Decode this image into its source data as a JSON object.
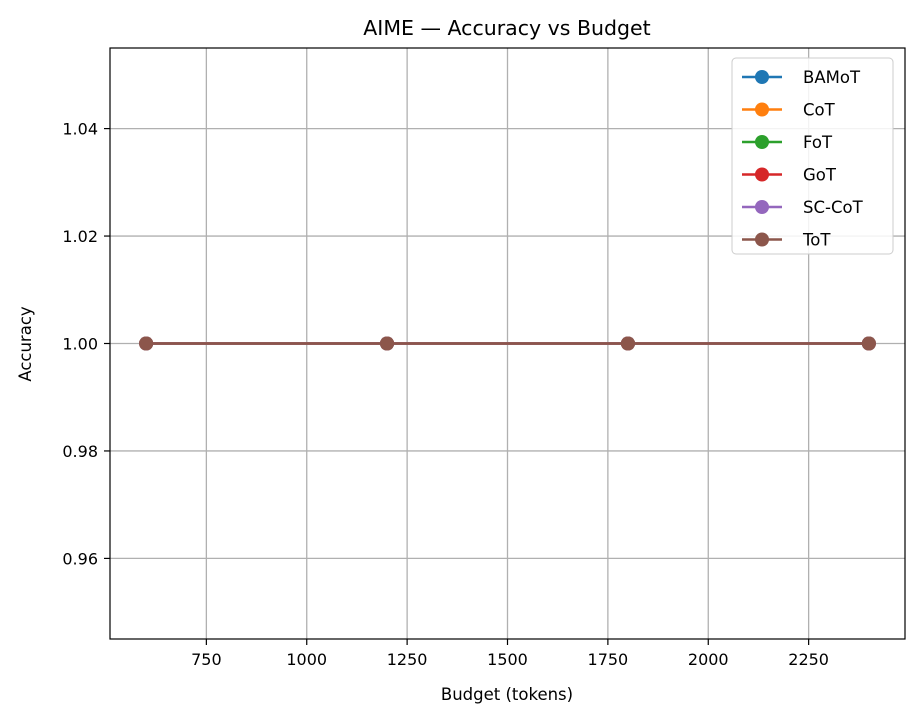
{
  "chart_data": {
    "type": "line",
    "title": "AIME — Accuracy vs Budget",
    "xlabel": "Budget (tokens)",
    "ylabel": "Accuracy",
    "x": [
      600,
      1200,
      1800,
      2400
    ],
    "xlim": [
      510,
      2490
    ],
    "ylim": [
      0.945,
      1.055
    ],
    "xticks": [
      750,
      1000,
      1250,
      1500,
      1750,
      2000,
      2250
    ],
    "yticks": [
      0.96,
      0.98,
      1.0,
      1.02,
      1.04
    ],
    "ytick_labels": [
      "0.96",
      "0.98",
      "1.00",
      "1.02",
      "1.04"
    ],
    "grid": true,
    "legend_position": "top-right",
    "series": [
      {
        "name": "BAMoT",
        "color": "#1f77b4",
        "values": [
          1.0,
          1.0,
          1.0,
          1.0
        ]
      },
      {
        "name": "CoT",
        "color": "#ff7f0e",
        "values": [
          1.0,
          1.0,
          1.0,
          1.0
        ]
      },
      {
        "name": "FoT",
        "color": "#2ca02c",
        "values": [
          1.0,
          1.0,
          1.0,
          1.0
        ]
      },
      {
        "name": "GoT",
        "color": "#d62728",
        "values": [
          1.0,
          1.0,
          1.0,
          1.0
        ]
      },
      {
        "name": "SC-CoT",
        "color": "#9467bd",
        "values": [
          1.0,
          1.0,
          1.0,
          1.0
        ]
      },
      {
        "name": "ToT",
        "color": "#8c564b",
        "values": [
          1.0,
          1.0,
          1.0,
          1.0
        ]
      }
    ]
  }
}
